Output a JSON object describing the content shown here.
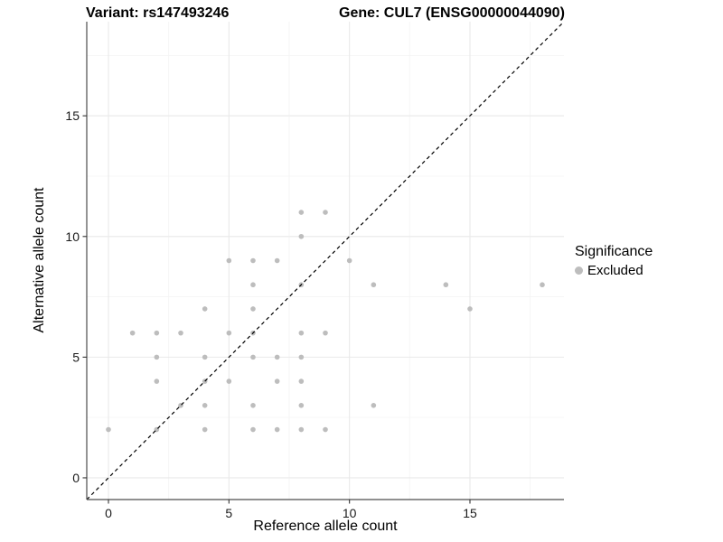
{
  "title_left": "Variant: rs147493246",
  "title_right": "Gene: CUL7 (ENSG00000044090)",
  "axes": {
    "x": {
      "label": "Reference allele count",
      "ticks": [
        0,
        5,
        10,
        15
      ],
      "minor_ticks": [
        2.5,
        7.5,
        12.5,
        17.5
      ]
    },
    "y": {
      "label": "Alternative allele count",
      "ticks": [
        0,
        5,
        10,
        15
      ],
      "minor_ticks": [
        2.5,
        7.5,
        12.5,
        17.5
      ]
    }
  },
  "legend": {
    "title": "Significance",
    "items": [
      {
        "label": "Excluded",
        "color": "#bdbdbd"
      }
    ]
  },
  "colors": {
    "point": "#bdbdbd",
    "grid_major": "#e9e9e9",
    "grid_minor": "#f4f4f4",
    "axis_line": "#4d4d4d",
    "tick_mark": "#333333",
    "tick_label": "#1a1a1a",
    "identity_line": "#000000",
    "background": "#ffffff"
  },
  "chart_data": {
    "type": "scatter",
    "title": "Variant: rs147493246 | Gene: CUL7 (ENSG00000044090)",
    "xlabel": "Reference allele count",
    "ylabel": "Alternative allele count",
    "xlim": [
      -0.9,
      18.9
    ],
    "ylim": [
      -0.9,
      18.9
    ],
    "grid": true,
    "legend_position": "right",
    "identity_line": {
      "style": "dashed",
      "equation": "y = x",
      "from": [
        -0.9,
        -0.9
      ],
      "to": [
        18.9,
        18.9
      ]
    },
    "series": [
      {
        "name": "Excluded",
        "color": "#bdbdbd",
        "points": [
          [
            0,
            2
          ],
          [
            1,
            6
          ],
          [
            2,
            2
          ],
          [
            2,
            4
          ],
          [
            2,
            5
          ],
          [
            2,
            6
          ],
          [
            3,
            3
          ],
          [
            3,
            6
          ],
          [
            4,
            2
          ],
          [
            4,
            3
          ],
          [
            4,
            4
          ],
          [
            4,
            5
          ],
          [
            4,
            7
          ],
          [
            5,
            4
          ],
          [
            5,
            6
          ],
          [
            5,
            9
          ],
          [
            6,
            2
          ],
          [
            6,
            3
          ],
          [
            6,
            5
          ],
          [
            6,
            6
          ],
          [
            6,
            7
          ],
          [
            6,
            8
          ],
          [
            6,
            9
          ],
          [
            7,
            2
          ],
          [
            7,
            4
          ],
          [
            7,
            5
          ],
          [
            7,
            9
          ],
          [
            8,
            2
          ],
          [
            8,
            3
          ],
          [
            8,
            4
          ],
          [
            8,
            5
          ],
          [
            8,
            6
          ],
          [
            8,
            8
          ],
          [
            8,
            10
          ],
          [
            8,
            11
          ],
          [
            9,
            2
          ],
          [
            9,
            6
          ],
          [
            9,
            11
          ],
          [
            10,
            9
          ],
          [
            11,
            3
          ],
          [
            11,
            8
          ],
          [
            14,
            8
          ],
          [
            15,
            7
          ],
          [
            18,
            8
          ]
        ]
      }
    ]
  }
}
